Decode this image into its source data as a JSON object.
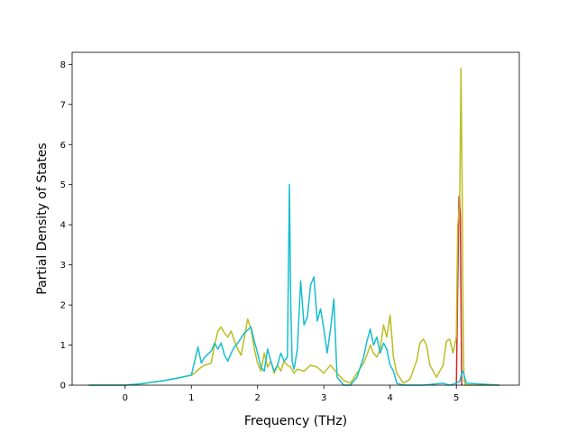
{
  "chart_data": {
    "type": "line",
    "title": "",
    "xlabel": "Frequency (THz)",
    "ylabel": "Partial Density of States",
    "xlim": [
      -0.8,
      5.95
    ],
    "ylim": [
      0,
      8.3
    ],
    "xticks": [
      0,
      1,
      2,
      3,
      4,
      5
    ],
    "yticks": [
      0,
      1,
      2,
      3,
      4,
      5,
      6,
      7,
      8
    ],
    "grid": false,
    "legend": "none",
    "series": [
      {
        "color": "#d62728",
        "x": [
          5.0,
          5.02,
          5.04,
          5.05,
          5.06,
          5.08
        ],
        "values": [
          0.0,
          2.5,
          4.7,
          4.65,
          4.2,
          0.0
        ]
      },
      {
        "color": "#bcbd22",
        "x": [
          -0.55,
          0,
          0.2,
          0.4,
          0.6,
          0.8,
          1.0,
          1.05,
          1.1,
          1.15,
          1.2,
          1.3,
          1.35,
          1.4,
          1.45,
          1.5,
          1.55,
          1.6,
          1.65,
          1.7,
          1.75,
          1.8,
          1.85,
          1.9,
          1.95,
          2.0,
          2.05,
          2.1,
          2.15,
          2.2,
          2.25,
          2.3,
          2.35,
          2.4,
          2.45,
          2.5,
          2.55,
          2.6,
          2.7,
          2.8,
          2.9,
          3.0,
          3.1,
          3.2,
          3.3,
          3.4,
          3.5,
          3.6,
          3.65,
          3.7,
          3.75,
          3.8,
          3.85,
          3.9,
          3.95,
          4.0,
          4.05,
          4.1,
          4.2,
          4.3,
          4.4,
          4.45,
          4.5,
          4.55,
          4.6,
          4.7,
          4.8,
          4.85,
          4.9,
          4.95,
          5.0,
          5.02,
          5.05,
          5.07,
          5.09,
          5.1,
          5.11,
          5.12,
          5.14,
          5.2,
          5.65
        ],
        "values": [
          0.0,
          0.0,
          0.03,
          0.07,
          0.12,
          0.18,
          0.25,
          0.3,
          0.38,
          0.45,
          0.5,
          0.55,
          1.0,
          1.35,
          1.45,
          1.3,
          1.2,
          1.35,
          1.1,
          0.9,
          0.75,
          1.2,
          1.65,
          1.4,
          0.9,
          0.55,
          0.35,
          0.8,
          0.45,
          0.6,
          0.3,
          0.5,
          0.35,
          0.6,
          0.5,
          0.45,
          0.3,
          0.4,
          0.35,
          0.5,
          0.45,
          0.3,
          0.5,
          0.3,
          0.12,
          0.05,
          0.3,
          0.55,
          0.75,
          1.0,
          0.8,
          0.7,
          0.9,
          1.5,
          1.2,
          1.75,
          0.7,
          0.3,
          0.05,
          0.15,
          0.6,
          1.05,
          1.15,
          1.0,
          0.5,
          0.2,
          0.5,
          1.1,
          1.15,
          0.8,
          1.2,
          4.0,
          4.5,
          7.9,
          4.5,
          2.0,
          0.5,
          0.1,
          0.0,
          0.0,
          0.0
        ]
      },
      {
        "color": "#17becf",
        "x": [
          -0.55,
          0,
          0.2,
          0.4,
          0.6,
          0.8,
          1.0,
          1.05,
          1.1,
          1.15,
          1.2,
          1.3,
          1.35,
          1.4,
          1.45,
          1.5,
          1.55,
          1.6,
          1.65,
          1.7,
          1.8,
          1.9,
          1.95,
          2.0,
          2.05,
          2.1,
          2.15,
          2.2,
          2.25,
          2.3,
          2.35,
          2.4,
          2.45,
          2.48,
          2.5,
          2.52,
          2.55,
          2.6,
          2.65,
          2.7,
          2.75,
          2.8,
          2.85,
          2.9,
          2.95,
          3.0,
          3.05,
          3.1,
          3.15,
          3.2,
          3.3,
          3.4,
          3.5,
          3.6,
          3.65,
          3.7,
          3.75,
          3.8,
          3.85,
          3.9,
          3.95,
          4.0,
          4.05,
          4.1,
          4.2,
          4.5,
          4.8,
          4.9,
          5.0,
          5.05,
          5.08,
          5.1,
          5.15,
          5.65
        ],
        "values": [
          0.0,
          0.0,
          0.03,
          0.07,
          0.12,
          0.18,
          0.25,
          0.6,
          0.95,
          0.55,
          0.7,
          0.85,
          1.05,
          0.9,
          1.05,
          0.75,
          0.6,
          0.8,
          0.95,
          1.05,
          1.3,
          1.45,
          1.1,
          0.8,
          0.45,
          0.35,
          0.9,
          0.6,
          0.35,
          0.5,
          0.8,
          0.6,
          0.7,
          5.0,
          2.0,
          0.6,
          0.4,
          0.9,
          2.6,
          1.5,
          1.7,
          2.5,
          2.7,
          1.6,
          1.9,
          1.4,
          0.8,
          1.4,
          2.15,
          0.2,
          0.0,
          0.0,
          0.2,
          0.7,
          1.1,
          1.4,
          1.0,
          1.2,
          0.8,
          1.05,
          0.9,
          0.5,
          0.35,
          0.05,
          0.0,
          0.0,
          0.05,
          0.0,
          0.05,
          0.1,
          0.3,
          0.35,
          0.05,
          0.0
        ]
      }
    ]
  }
}
